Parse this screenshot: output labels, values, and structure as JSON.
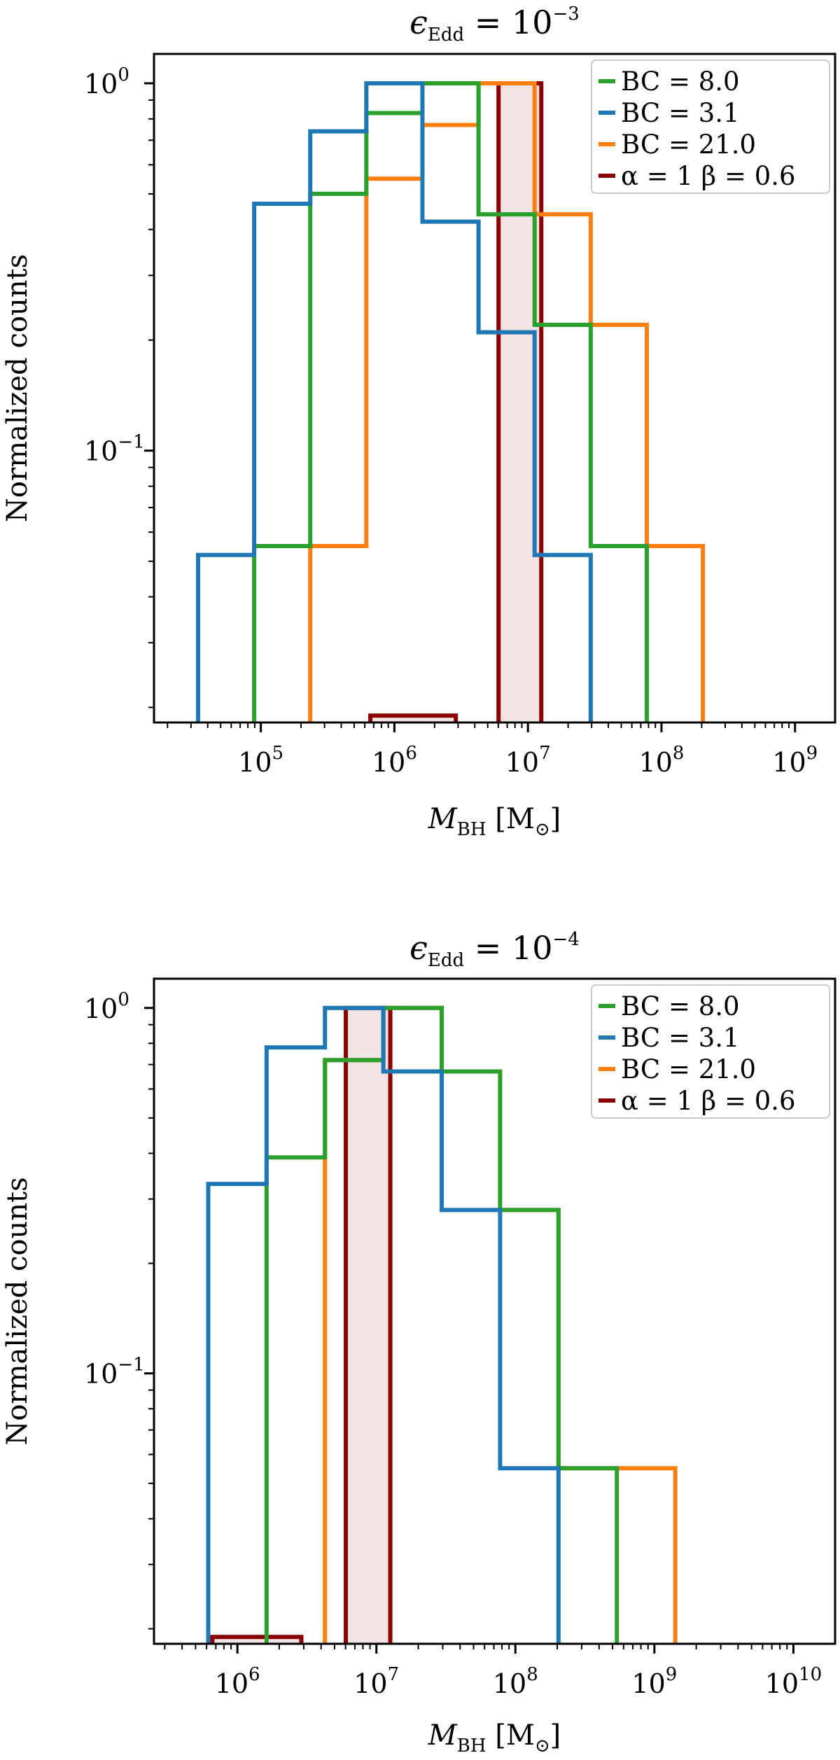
{
  "chart_data": [
    {
      "type": "histogram",
      "title_main": "ϵ",
      "title_sub": "Edd",
      "title_eq": " = 10",
      "title_exp": "−3",
      "xlabel_main": "M",
      "xlabel_sub": "BH",
      "xlabel_unit": " [M",
      "xlabel_unit_sub": "⊙",
      "xlabel_close": "]",
      "ylabel": "Normalized counts",
      "xscale": "log",
      "yscale": "log",
      "xlim_log10": [
        4.2,
        9.3
      ],
      "ylim_log10": [
        -1.74,
        0.08
      ],
      "xticks": [
        {
          "base": "10",
          "exp": "5",
          "v": 5
        },
        {
          "base": "10",
          "exp": "6",
          "v": 6
        },
        {
          "base": "10",
          "exp": "7",
          "v": 7
        },
        {
          "base": "10",
          "exp": "8",
          "v": 8
        },
        {
          "base": "10",
          "exp": "9",
          "v": 9
        }
      ],
      "yticks": [
        {
          "base": "10",
          "exp": "0",
          "v": 0
        },
        {
          "base": "10",
          "exp": "−1",
          "v": -1
        }
      ],
      "legend_position": "upper right",
      "series": [
        {
          "name": "BC = 8.0",
          "color": "#2ca02c",
          "fill": "none",
          "edges_log10": [
            4.95,
            5.37,
            5.79,
            6.21,
            6.63,
            7.05,
            7.47,
            7.89
          ],
          "values": [
            0.055,
            0.5,
            0.83,
            1.0,
            0.44,
            0.22,
            0.055
          ]
        },
        {
          "name": "BC = 3.1",
          "color": "#1f77b4",
          "fill": "none",
          "edges_log10": [
            4.53,
            4.95,
            5.37,
            5.79,
            6.21,
            6.63,
            7.05,
            7.47
          ],
          "values": [
            0.052,
            0.47,
            0.74,
            1.0,
            0.42,
            0.21,
            0.052
          ]
        },
        {
          "name": "BC = 21.0",
          "color": "#ff7f0e",
          "fill": "none",
          "edges_log10": [
            5.37,
            5.79,
            6.21,
            6.63,
            7.05,
            7.47,
            7.89,
            8.31
          ],
          "values": [
            0.055,
            0.55,
            0.77,
            1.0,
            0.44,
            0.22,
            0.055
          ]
        },
        {
          "name": "α = 1 β = 0.6",
          "color": "#8b0000",
          "fill": "#f2e4e4",
          "edges_log10": [
            5.82,
            6.46,
            6.78,
            7.1
          ],
          "values": [
            0.019,
            0.012,
            1.0
          ]
        }
      ]
    },
    {
      "type": "histogram",
      "title_main": "ϵ",
      "title_sub": "Edd",
      "title_eq": " = 10",
      "title_exp": "−4",
      "xlabel_main": "M",
      "xlabel_sub": "BH",
      "xlabel_unit": " [M",
      "xlabel_unit_sub": "⊙",
      "xlabel_close": "]",
      "ylabel": "Normalized counts",
      "xscale": "log",
      "yscale": "log",
      "xlim_log10": [
        5.4,
        10.3
      ],
      "ylim_log10": [
        -1.74,
        0.08
      ],
      "xticks": [
        {
          "base": "10",
          "exp": "6",
          "v": 6
        },
        {
          "base": "10",
          "exp": "7",
          "v": 7
        },
        {
          "base": "10",
          "exp": "8",
          "v": 8
        },
        {
          "base": "10",
          "exp": "9",
          "v": 9
        },
        {
          "base": "10",
          "exp": "10",
          "v": 10
        }
      ],
      "yticks": [
        {
          "base": "10",
          "exp": "0",
          "v": 0
        },
        {
          "base": "10",
          "exp": "−1",
          "v": -1
        }
      ],
      "legend_position": "upper right",
      "series": [
        {
          "name": "BC = 8.0",
          "color": "#2ca02c",
          "fill": "none",
          "edges_log10": [
            6.21,
            6.63,
            7.05,
            7.47,
            7.89,
            8.31,
            8.73
          ],
          "values": [
            0.39,
            0.72,
            1.0,
            0.67,
            0.28,
            0.055
          ]
        },
        {
          "name": "BC = 3.1",
          "color": "#1f77b4",
          "fill": "none",
          "edges_log10": [
            5.79,
            6.21,
            6.63,
            7.05,
            7.47,
            7.89,
            8.31
          ],
          "values": [
            0.33,
            0.78,
            1.0,
            0.67,
            0.28,
            0.055
          ]
        },
        {
          "name": "BC = 21.0",
          "color": "#ff7f0e",
          "fill": "none",
          "edges_log10": [
            6.63,
            7.05,
            7.47,
            7.89,
            8.31,
            8.73,
            9.15
          ],
          "values": [
            0.72,
            1.0,
            0.67,
            0.28,
            0.055,
            0.055
          ]
        },
        {
          "name": "α = 1 β = 0.6",
          "color": "#8b0000",
          "fill": "#f2e4e4",
          "edges_log10": [
            5.82,
            6.46,
            6.78,
            7.1
          ],
          "values": [
            0.019,
            0.012,
            1.0
          ]
        }
      ]
    }
  ]
}
